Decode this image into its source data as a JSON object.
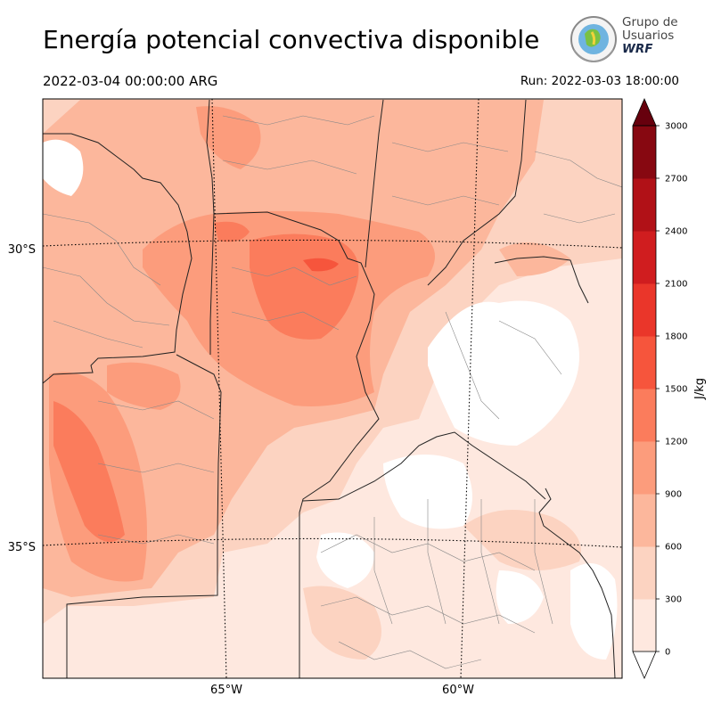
{
  "header": {
    "title": "Energía potencial convectiva disponible",
    "valid_time": "2022-03-04 00:00:00 ARG",
    "run_time": "Run: 2022-03-03 18:00:00"
  },
  "logo": {
    "line1": "Grupo de",
    "line2": "Usuarios",
    "line3": "WRF"
  },
  "map": {
    "lat_labels": [
      "30°S",
      "35°S"
    ],
    "lon_labels": [
      "65°W",
      "60°W"
    ]
  },
  "colorbar": {
    "unit": "J/kg",
    "levels": [
      0,
      300,
      600,
      900,
      1200,
      1500,
      1800,
      2100,
      2400,
      2700,
      3000
    ],
    "tick_labels": [
      "0",
      "300",
      "600",
      "900",
      "1200",
      "1500",
      "1800",
      "2100",
      "2400",
      "2700",
      "3000"
    ],
    "colors": [
      "#fee8df",
      "#fcd3c1",
      "#fcb79c",
      "#fc9c7c",
      "#fb7c5c",
      "#f6553c",
      "#ea362a",
      "#d01d1f",
      "#b11117",
      "#870811"
    ],
    "extend_max_color": "#67000d"
  }
}
